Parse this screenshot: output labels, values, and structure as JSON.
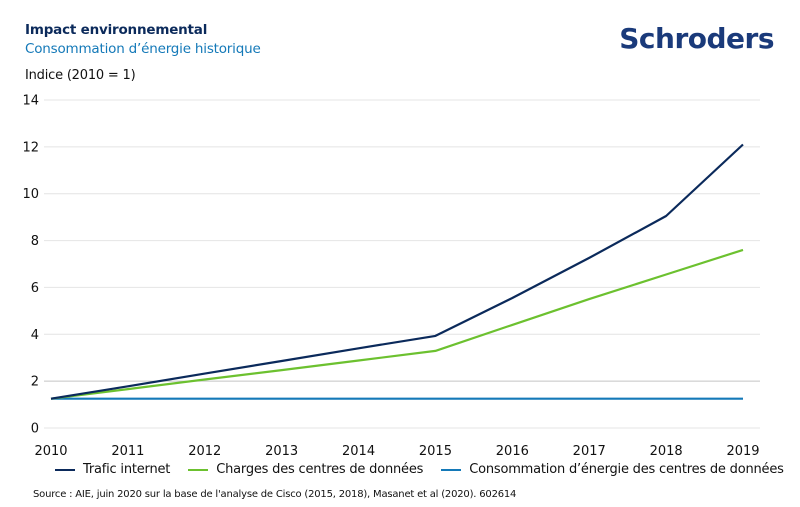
{
  "header": {
    "title": "Impact environnemental",
    "subtitle": "Consommation d’énergie historique",
    "logo": "Schroders"
  },
  "source": "Source : AIE, juin 2020 sur la base de l'analyse de Cisco (2015, 2018), Masanet et al (2020). 602614",
  "chart_data": {
    "type": "line",
    "title": "Consommation d’énergie historique",
    "xlabel": "",
    "ylabel": "Indice (2010 = 1)",
    "x": [
      "2010",
      "2011",
      "2012",
      "2013",
      "2014",
      "2015",
      "2016",
      "2017",
      "2018",
      "2019"
    ],
    "ylim": [
      0,
      14
    ],
    "yticks": [
      0,
      2,
      4,
      6,
      8,
      10,
      12,
      14
    ],
    "grid": true,
    "legend_position": "bottom",
    "series": [
      {
        "name": "Trafic internet",
        "color": "#0b2a5b",
        "values": [
          1.25,
          1.78,
          2.32,
          2.86,
          3.4,
          3.93,
          5.55,
          7.26,
          9.05,
          12.1
        ]
      },
      {
        "name": "Charges des centres de données",
        "color": "#6cc12f",
        "values": [
          1.25,
          1.66,
          2.07,
          2.47,
          2.88,
          3.29,
          4.4,
          5.5,
          6.55,
          7.6
        ]
      },
      {
        "name": "Consommation d’énergie des centres de données",
        "color": "#1479b8",
        "values": [
          1.25,
          1.25,
          1.25,
          1.25,
          1.25,
          1.25,
          1.25,
          1.25,
          1.25,
          1.25
        ]
      }
    ]
  }
}
